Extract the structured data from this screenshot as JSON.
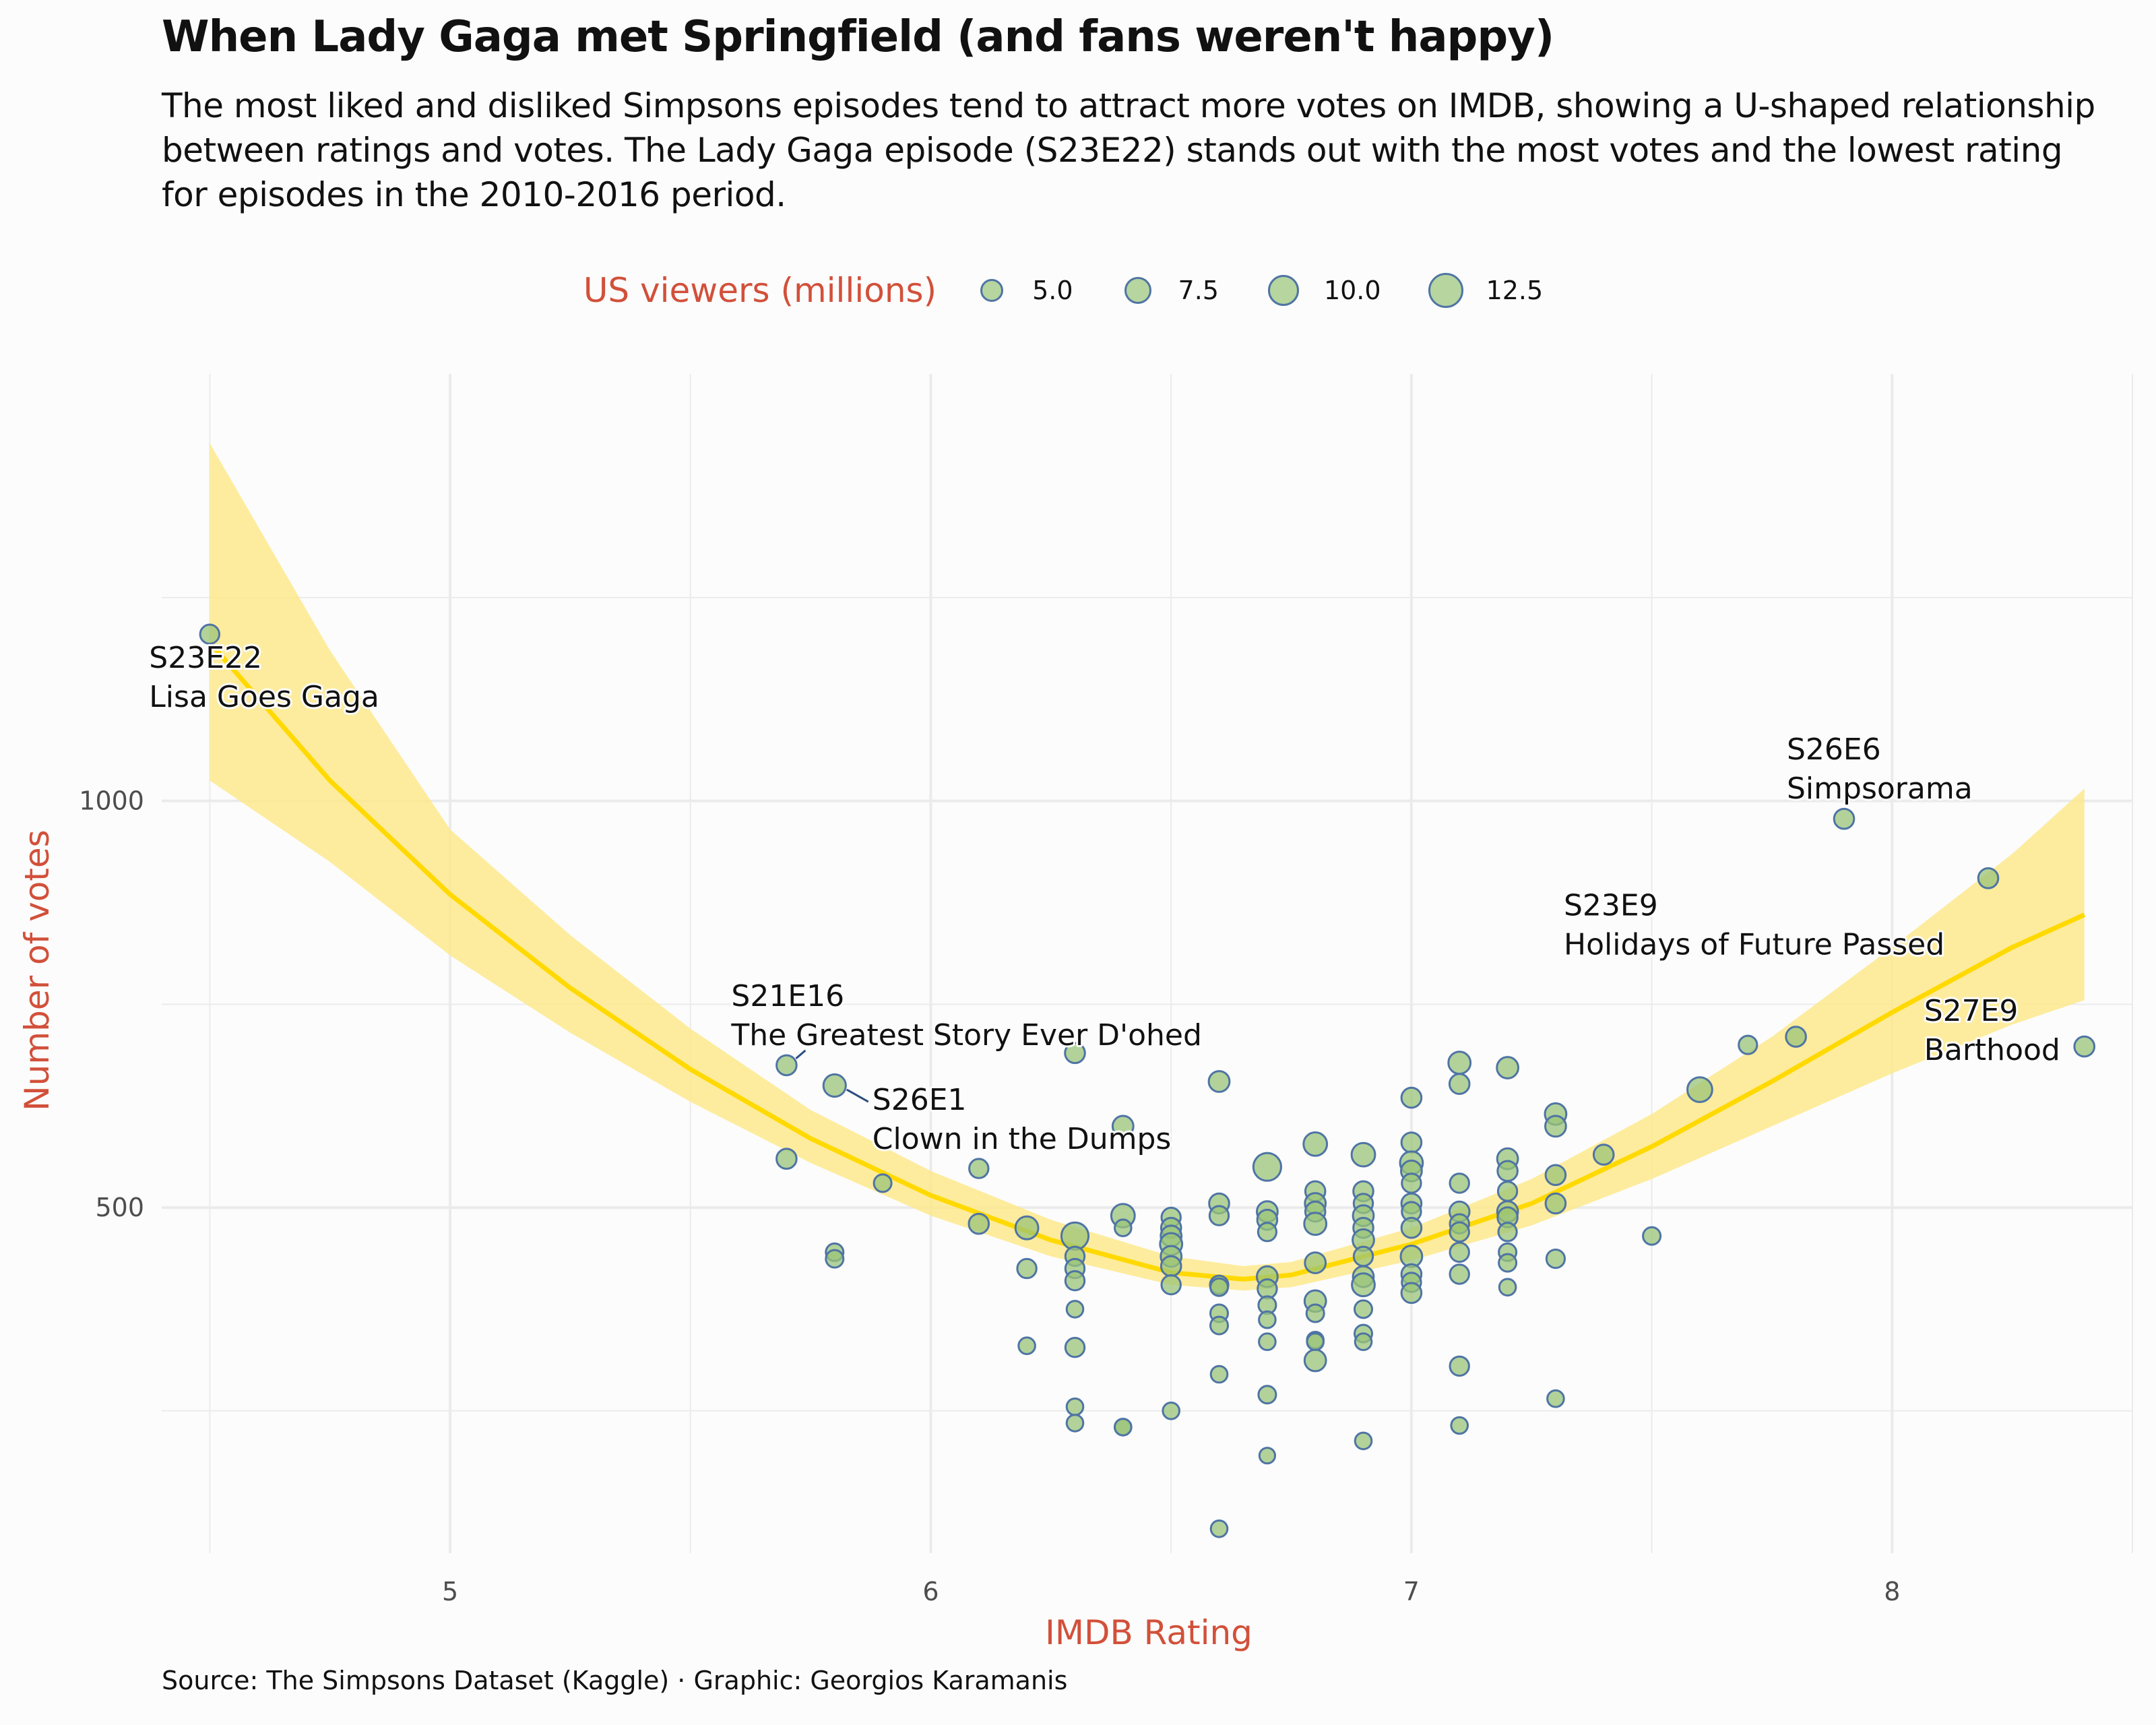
{
  "title": "When Lady Gaga met Springfield (and fans weren't happy)",
  "subtitle": "The most liked and disliked Simpsons episodes tend to attract more votes on IMDB, showing a U-shaped relationship between ratings and votes. The Lady Gaga episode (S23E22) stands out with the most votes and the lowest rating for episodes in the 2010-2016 period.",
  "caption": "Source: The Simpsons Dataset (Kaggle) · Graphic: Georgios Karamanis",
  "colors": {
    "point_fill": "#99c478",
    "point_stroke": "#4f74a4",
    "trend_line": "#ffd900",
    "ribbon": "#fde98c",
    "axis_title": "#d2503a",
    "background": "#fcfcfc",
    "grid": "#ebebeb"
  },
  "chart_data": {
    "type": "scatter",
    "title": "When Lady Gaga met Springfield (and fans weren't happy)",
    "xlabel": "IMDB Rating",
    "ylabel": "Number of votes",
    "xlim": [
      4.4,
      8.5
    ],
    "ylim": [
      75,
      1525
    ],
    "x_ticks": [
      5,
      6,
      7,
      8
    ],
    "y_ticks": [
      500,
      1000
    ],
    "grid": true,
    "legend": {
      "title": "US viewers (millions)",
      "placement": "top",
      "labels": [
        "5.0",
        "7.5",
        "10.0",
        "12.5"
      ],
      "values": [
        5.0,
        7.5,
        10.0,
        12.5
      ]
    },
    "trend": {
      "method": "quadratic smooth",
      "x": [
        4.5,
        4.75,
        5.0,
        5.25,
        5.5,
        5.75,
        6.0,
        6.25,
        6.5,
        6.65,
        6.75,
        7.0,
        7.25,
        7.5,
        7.75,
        8.0,
        8.25,
        8.4
      ],
      "y": [
        1195,
        1025,
        885,
        770,
        670,
        585,
        515,
        460,
        420,
        412,
        417,
        455,
        505,
        575,
        655,
        740,
        820,
        860
      ],
      "lower": [
        1025,
        925,
        810,
        715,
        630,
        555,
        490,
        440,
        405,
        398,
        402,
        435,
        478,
        535,
        600,
        665,
        725,
        755
      ],
      "upper": [
        1440,
        1185,
        965,
        835,
        720,
        620,
        545,
        485,
        440,
        428,
        433,
        475,
        535,
        615,
        710,
        820,
        935,
        1015
      ]
    },
    "annotations": [
      {
        "x": 4.5,
        "y": 1205,
        "episode": "S23E22",
        "name": "Lisa Goes Gaga"
      },
      {
        "x": 7.9,
        "y": 978,
        "episode": "S26E6",
        "name": "Simpsorama"
      },
      {
        "x": 8.2,
        "y": 905,
        "episode": "S23E9",
        "name": "Holidays of Future Passed"
      },
      {
        "x": 5.7,
        "y": 675,
        "episode": "S21E16",
        "name": "The Greatest Story Ever D'ohed"
      },
      {
        "x": 5.8,
        "y": 650,
        "episode": "S26E1",
        "name": "Clown in the Dumps"
      },
      {
        "x": 8.4,
        "y": 698,
        "episode": "S27E9",
        "name": "Barthood"
      }
    ],
    "points": [
      {
        "x": 4.5,
        "y": 1205,
        "viewers": 6.0
      },
      {
        "x": 5.7,
        "y": 675,
        "viewers": 6.5
      },
      {
        "x": 5.7,
        "y": 560,
        "viewers": 6.5
      },
      {
        "x": 5.8,
        "y": 650,
        "viewers": 8.2
      },
      {
        "x": 5.8,
        "y": 445,
        "viewers": 5.0
      },
      {
        "x": 5.8,
        "y": 437,
        "viewers": 5.0
      },
      {
        "x": 5.9,
        "y": 530,
        "viewers": 5.0
      },
      {
        "x": 6.1,
        "y": 548,
        "viewers": 6.0
      },
      {
        "x": 6.1,
        "y": 480,
        "viewers": 6.5
      },
      {
        "x": 6.2,
        "y": 475,
        "viewers": 8.5
      },
      {
        "x": 6.2,
        "y": 425,
        "viewers": 6.0
      },
      {
        "x": 6.2,
        "y": 330,
        "viewers": 4.5
      },
      {
        "x": 6.3,
        "y": 690,
        "viewers": 6.5
      },
      {
        "x": 6.3,
        "y": 465,
        "viewers": 12.0
      },
      {
        "x": 6.3,
        "y": 440,
        "viewers": 6.0
      },
      {
        "x": 6.3,
        "y": 425,
        "viewers": 6.0
      },
      {
        "x": 6.3,
        "y": 410,
        "viewers": 6.0
      },
      {
        "x": 6.3,
        "y": 375,
        "viewers": 4.5
      },
      {
        "x": 6.3,
        "y": 328,
        "viewers": 6.0
      },
      {
        "x": 6.3,
        "y": 255,
        "viewers": 4.5
      },
      {
        "x": 6.3,
        "y": 235,
        "viewers": 4.5
      },
      {
        "x": 6.4,
        "y": 600,
        "viewers": 7.0
      },
      {
        "x": 6.4,
        "y": 490,
        "viewers": 9.0
      },
      {
        "x": 6.4,
        "y": 475,
        "viewers": 4.5
      },
      {
        "x": 6.4,
        "y": 230,
        "viewers": 4.5
      },
      {
        "x": 6.4,
        "y": 230,
        "viewers": 4.5
      },
      {
        "x": 6.5,
        "y": 488,
        "viewers": 6.0
      },
      {
        "x": 6.5,
        "y": 475,
        "viewers": 6.5
      },
      {
        "x": 6.5,
        "y": 465,
        "viewers": 7.0
      },
      {
        "x": 6.5,
        "y": 455,
        "viewers": 8.0
      },
      {
        "x": 6.5,
        "y": 440,
        "viewers": 7.0
      },
      {
        "x": 6.5,
        "y": 428,
        "viewers": 6.5
      },
      {
        "x": 6.5,
        "y": 405,
        "viewers": 6.0
      },
      {
        "x": 6.5,
        "y": 250,
        "viewers": 4.5
      },
      {
        "x": 6.6,
        "y": 655,
        "viewers": 7.0
      },
      {
        "x": 6.6,
        "y": 505,
        "viewers": 6.5
      },
      {
        "x": 6.6,
        "y": 490,
        "viewers": 6.0
      },
      {
        "x": 6.6,
        "y": 405,
        "viewers": 5.5
      },
      {
        "x": 6.6,
        "y": 402,
        "viewers": 5.0
      },
      {
        "x": 6.6,
        "y": 370,
        "viewers": 5.0
      },
      {
        "x": 6.6,
        "y": 355,
        "viewers": 5.0
      },
      {
        "x": 6.6,
        "y": 295,
        "viewers": 4.5
      },
      {
        "x": 6.6,
        "y": 105,
        "viewers": 4.5
      },
      {
        "x": 6.7,
        "y": 550,
        "viewers": 12.5
      },
      {
        "x": 6.7,
        "y": 495,
        "viewers": 7.0
      },
      {
        "x": 6.7,
        "y": 485,
        "viewers": 6.5
      },
      {
        "x": 6.7,
        "y": 470,
        "viewers": 5.5
      },
      {
        "x": 6.7,
        "y": 415,
        "viewers": 7.0
      },
      {
        "x": 6.7,
        "y": 400,
        "viewers": 6.0
      },
      {
        "x": 6.7,
        "y": 380,
        "viewers": 5.0
      },
      {
        "x": 6.7,
        "y": 362,
        "viewers": 4.5
      },
      {
        "x": 6.7,
        "y": 335,
        "viewers": 4.5
      },
      {
        "x": 6.7,
        "y": 270,
        "viewers": 5.0
      },
      {
        "x": 6.7,
        "y": 195,
        "viewers": 4.0
      },
      {
        "x": 6.8,
        "y": 578,
        "viewers": 9.0
      },
      {
        "x": 6.8,
        "y": 520,
        "viewers": 6.5
      },
      {
        "x": 6.8,
        "y": 505,
        "viewers": 7.0
      },
      {
        "x": 6.8,
        "y": 495,
        "viewers": 6.5
      },
      {
        "x": 6.8,
        "y": 480,
        "viewers": 8.0
      },
      {
        "x": 6.8,
        "y": 432,
        "viewers": 7.0
      },
      {
        "x": 6.8,
        "y": 385,
        "viewers": 7.5
      },
      {
        "x": 6.8,
        "y": 370,
        "viewers": 5.0
      },
      {
        "x": 6.8,
        "y": 337,
        "viewers": 4.5
      },
      {
        "x": 6.8,
        "y": 335,
        "viewers": 4.5
      },
      {
        "x": 6.8,
        "y": 312,
        "viewers": 7.5
      },
      {
        "x": 6.9,
        "y": 565,
        "viewers": 9.0
      },
      {
        "x": 6.9,
        "y": 520,
        "viewers": 6.5
      },
      {
        "x": 6.9,
        "y": 505,
        "viewers": 6.0
      },
      {
        "x": 6.9,
        "y": 490,
        "viewers": 7.0
      },
      {
        "x": 6.9,
        "y": 475,
        "viewers": 6.5
      },
      {
        "x": 6.9,
        "y": 460,
        "viewers": 7.5
      },
      {
        "x": 6.9,
        "y": 440,
        "viewers": 6.0
      },
      {
        "x": 6.9,
        "y": 415,
        "viewers": 7.0
      },
      {
        "x": 6.9,
        "y": 405,
        "viewers": 8.5
      },
      {
        "x": 6.9,
        "y": 375,
        "viewers": 5.0
      },
      {
        "x": 6.9,
        "y": 345,
        "viewers": 5.0
      },
      {
        "x": 6.9,
        "y": 335,
        "viewers": 4.5
      },
      {
        "x": 6.9,
        "y": 213,
        "viewers": 4.5
      },
      {
        "x": 7.0,
        "y": 635,
        "viewers": 6.5
      },
      {
        "x": 7.0,
        "y": 580,
        "viewers": 6.5
      },
      {
        "x": 7.0,
        "y": 555,
        "viewers": 8.5
      },
      {
        "x": 7.0,
        "y": 545,
        "viewers": 7.0
      },
      {
        "x": 7.0,
        "y": 530,
        "viewers": 6.0
      },
      {
        "x": 7.0,
        "y": 505,
        "viewers": 6.5
      },
      {
        "x": 7.0,
        "y": 495,
        "viewers": 6.0
      },
      {
        "x": 7.0,
        "y": 475,
        "viewers": 6.5
      },
      {
        "x": 7.0,
        "y": 440,
        "viewers": 7.5
      },
      {
        "x": 7.0,
        "y": 418,
        "viewers": 6.5
      },
      {
        "x": 7.0,
        "y": 408,
        "viewers": 6.0
      },
      {
        "x": 7.0,
        "y": 395,
        "viewers": 6.5
      },
      {
        "x": 7.1,
        "y": 678,
        "viewers": 8.0
      },
      {
        "x": 7.1,
        "y": 652,
        "viewers": 6.5
      },
      {
        "x": 7.1,
        "y": 530,
        "viewers": 6.0
      },
      {
        "x": 7.1,
        "y": 495,
        "viewers": 6.5
      },
      {
        "x": 7.1,
        "y": 480,
        "viewers": 6.0
      },
      {
        "x": 7.1,
        "y": 470,
        "viewers": 6.0
      },
      {
        "x": 7.1,
        "y": 445,
        "viewers": 6.0
      },
      {
        "x": 7.1,
        "y": 418,
        "viewers": 6.0
      },
      {
        "x": 7.1,
        "y": 305,
        "viewers": 6.0
      },
      {
        "x": 7.1,
        "y": 232,
        "viewers": 4.5
      },
      {
        "x": 7.2,
        "y": 672,
        "viewers": 7.5
      },
      {
        "x": 7.2,
        "y": 560,
        "viewers": 7.0
      },
      {
        "x": 7.2,
        "y": 545,
        "viewers": 6.5
      },
      {
        "x": 7.2,
        "y": 520,
        "viewers": 6.0
      },
      {
        "x": 7.2,
        "y": 495,
        "viewers": 7.0
      },
      {
        "x": 7.2,
        "y": 488,
        "viewers": 6.5
      },
      {
        "x": 7.2,
        "y": 470,
        "viewers": 5.5
      },
      {
        "x": 7.2,
        "y": 445,
        "viewers": 5.0
      },
      {
        "x": 7.2,
        "y": 432,
        "viewers": 5.0
      },
      {
        "x": 7.2,
        "y": 402,
        "viewers": 4.5
      },
      {
        "x": 7.3,
        "y": 615,
        "viewers": 7.5
      },
      {
        "x": 7.3,
        "y": 600,
        "viewers": 7.0
      },
      {
        "x": 7.3,
        "y": 540,
        "viewers": 6.5
      },
      {
        "x": 7.3,
        "y": 505,
        "viewers": 6.5
      },
      {
        "x": 7.3,
        "y": 437,
        "viewers": 5.5
      },
      {
        "x": 7.3,
        "y": 265,
        "viewers": 4.5
      },
      {
        "x": 7.4,
        "y": 565,
        "viewers": 6.5
      },
      {
        "x": 7.5,
        "y": 465,
        "viewers": 5.0
      },
      {
        "x": 7.6,
        "y": 645,
        "viewers": 10.0
      },
      {
        "x": 7.7,
        "y": 700,
        "viewers": 5.5
      },
      {
        "x": 7.8,
        "y": 710,
        "viewers": 6.5
      },
      {
        "x": 7.9,
        "y": 978,
        "viewers": 6.5
      },
      {
        "x": 8.2,
        "y": 905,
        "viewers": 6.5
      },
      {
        "x": 8.4,
        "y": 698,
        "viewers": 6.5
      }
    ]
  }
}
